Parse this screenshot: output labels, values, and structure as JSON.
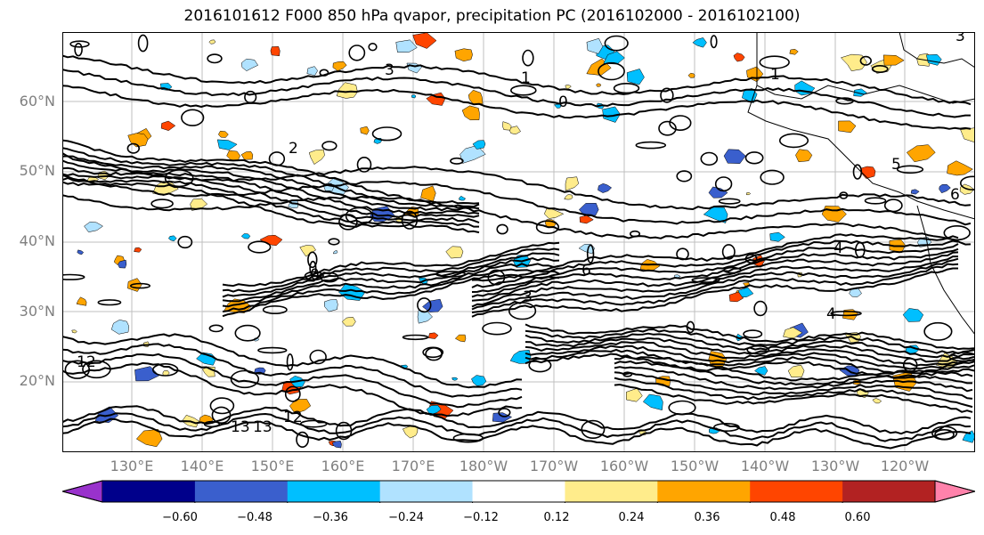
{
  "title": "2016101612 F000 850 hPa qvapor, precipitation PC (2016102000 - 2016102100)",
  "lat_labels": [
    "60°N",
    "50°N",
    "40°N",
    "30°N",
    "20°N"
  ],
  "lon_labels": [
    "130°E",
    "140°E",
    "150°E",
    "160°E",
    "170°E",
    "180°W",
    "170°W",
    "160°W",
    "150°W",
    "140°W",
    "130°W",
    "120°W"
  ],
  "colorbar": {
    "ticks": [
      "−0.60",
      "−0.48",
      "−0.36",
      "−0.24",
      "−0.12",
      "0.12",
      "0.24",
      "0.36",
      "0.48",
      "0.60"
    ],
    "colors": [
      "#9932cc",
      "#00008b",
      "#3a5fcd",
      "#00bfff",
      "#b0e2ff",
      "#ffffff",
      "#ffec8b",
      "#ffa500",
      "#ff4500",
      "#b22222",
      "#ff82ab"
    ]
  },
  "contour_labels": [
    "3",
    "1",
    "0",
    "2",
    "5",
    "6",
    "4",
    "3",
    "0",
    "6",
    "4",
    "12",
    "13",
    "13",
    "12",
    "1",
    "3"
  ],
  "colors": {
    "land_line": "#000000",
    "grid": "#bfbfbf",
    "tick_text": "#7f7f7f"
  }
}
